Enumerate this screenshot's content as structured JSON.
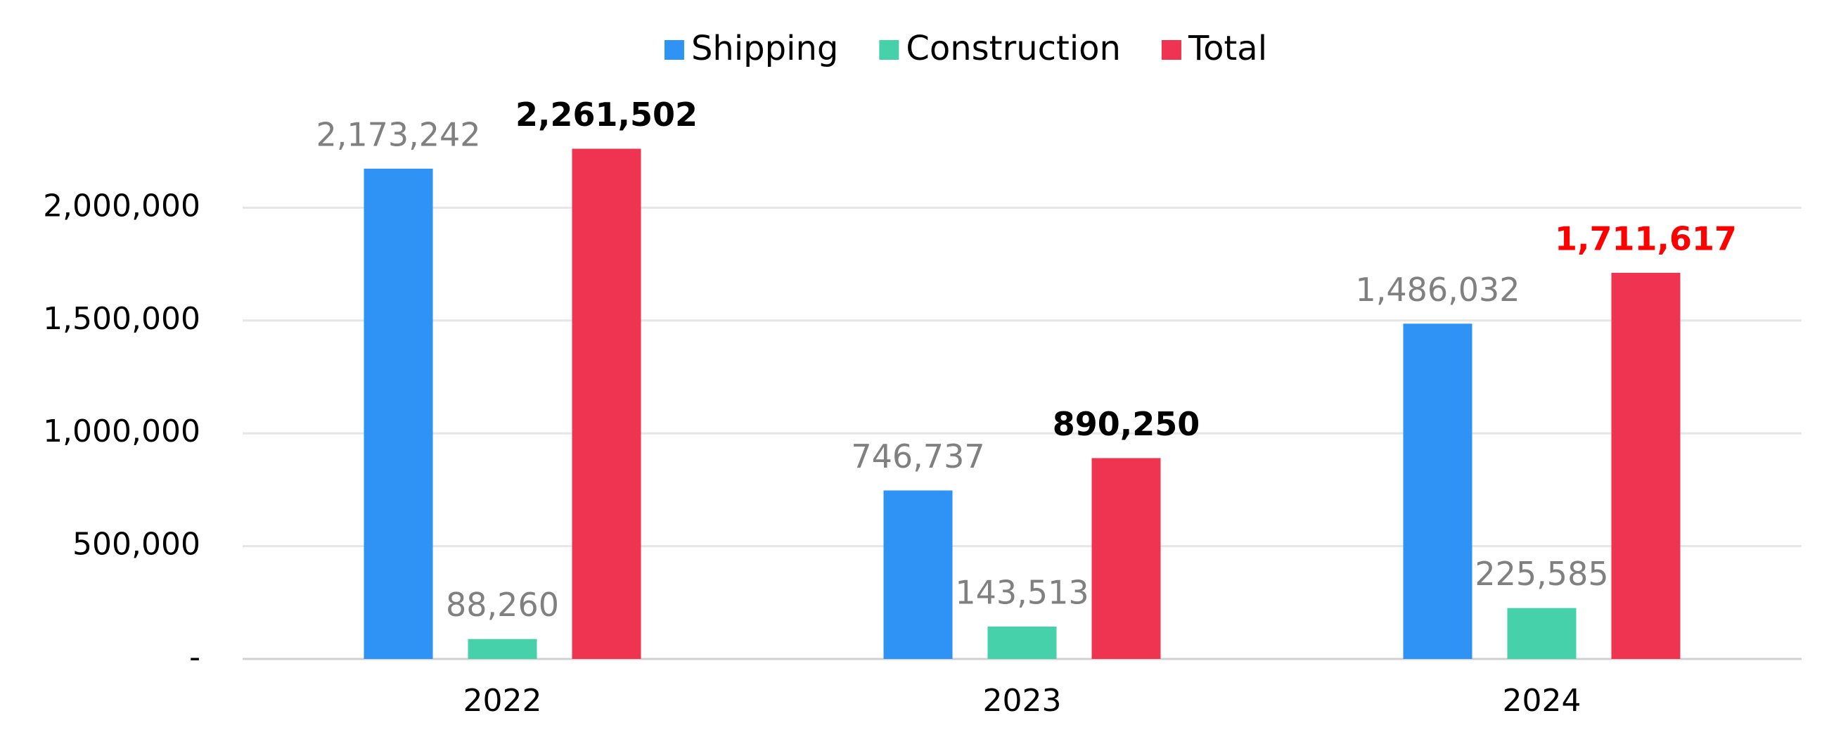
{
  "chart_data": {
    "type": "bar",
    "categories": [
      "2022",
      "2023",
      "2024"
    ],
    "series": [
      {
        "name": "Shipping",
        "color": "#2e93f5",
        "values": [
          2173242,
          746737,
          1486032
        ],
        "value_labels": [
          "2,173,242",
          "746,737",
          "1,486,032"
        ],
        "label_color": "#808080"
      },
      {
        "name": "Construction",
        "color": "#47d1aa",
        "values": [
          88260,
          143513,
          225585
        ],
        "value_labels": [
          "88,260",
          "143,513",
          "225,585"
        ],
        "label_color": "#808080"
      },
      {
        "name": "Total",
        "color": "#ee3451",
        "values": [
          2261502,
          890250,
          1711617
        ],
        "value_labels": [
          "2,261,502",
          "890,250",
          "1,711,617"
        ],
        "label_colors": [
          "#000000",
          "#000000",
          "#ff0000"
        ],
        "label_bold": true
      }
    ],
    "ylim": [
      0,
      2500000
    ],
    "yticks": [
      {
        "value": 0,
        "label": "-"
      },
      {
        "value": 500000,
        "label": "500,000"
      },
      {
        "value": 1000000,
        "label": "1,000,000"
      },
      {
        "value": 1500000,
        "label": "1,500,000"
      },
      {
        "value": 2000000,
        "label": "2,000,000"
      }
    ],
    "grid": true,
    "legend": "top"
  }
}
